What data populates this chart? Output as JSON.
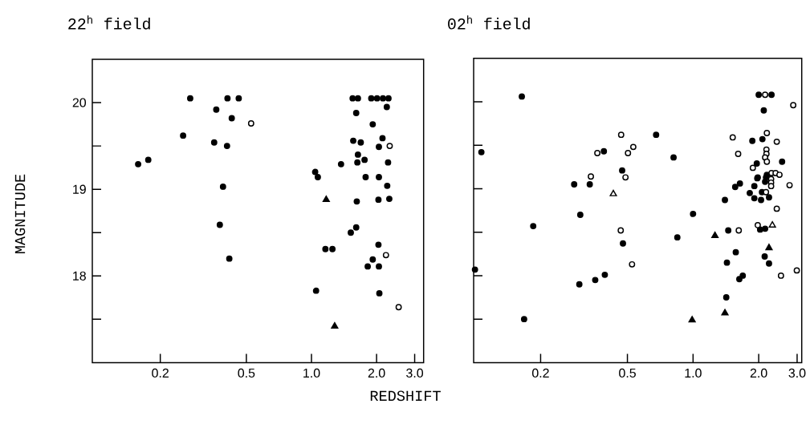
{
  "chart_data": [
    {
      "type": "scatter",
      "title": "22$^{h}$ field",
      "xlabel": "REDSHIFT",
      "ylabel": "MAGNITUDE",
      "log": "x",
      "xlim": [
        0.097,
        3.3
      ],
      "ylim": [
        17,
        20.5
      ],
      "xticks": [
        {
          "value": 0.2,
          "label": "0.2"
        },
        {
          "value": 0.5,
          "label": "0.5"
        },
        {
          "value": 1.0,
          "label": "1.0"
        },
        {
          "value": 2.0,
          "label": "2.0"
        },
        {
          "value": 3.0,
          "label": "3.0"
        }
      ],
      "yticks": [
        {
          "value": 17.5,
          "label": null
        },
        18,
        {
          "value": 18.5,
          "label": null
        },
        19,
        {
          "value": 19.5,
          "label": null
        },
        20
      ],
      "series": [
        {
          "color": "#000000",
          "marker": "circle",
          "x": [
            0.275,
            0.409,
            0.461,
            0.363,
            0.428,
            0.255,
            0.355,
            0.407,
            0.158,
            0.176,
            0.39,
            0.377,
            0.417,
            1.55,
            1.64,
            1.89,
            2.01,
            2.14,
            2.27,
            2.23,
            1.61,
            1.92,
            2.13,
            1.56,
            1.69,
            2.05,
            1.64,
            1.76,
            1.63,
            2.26,
            1.37,
            1.04,
            1.07,
            1.78,
            2.05,
            2.24,
            1.62,
            2.04,
            2.29,
            1.61,
            1.52,
            1.16,
            1.25,
            2.04,
            1.92,
            1.82,
            2.05,
            1.05,
            2.06
          ],
          "values": [
            20.05,
            20.05,
            20.05,
            19.92,
            19.82,
            19.62,
            19.54,
            19.5,
            19.29,
            19.34,
            19.03,
            18.59,
            18.2,
            20.05,
            20.05,
            20.05,
            20.05,
            20.05,
            20.05,
            19.95,
            19.88,
            19.75,
            19.59,
            19.56,
            19.54,
            19.49,
            19.4,
            19.34,
            19.31,
            19.31,
            19.29,
            19.2,
            19.14,
            19.14,
            19.14,
            19.04,
            18.86,
            18.88,
            18.89,
            18.56,
            18.5,
            18.31,
            18.31,
            18.36,
            18.19,
            18.11,
            18.11,
            17.83,
            17.8
          ]
        },
        {
          "color": "#ffffff",
          "marker": "circle",
          "x": [
            0.526,
            2.3,
            2.21,
            2.53
          ],
          "values": [
            19.76,
            19.5,
            18.24,
            17.64
          ]
        },
        {
          "color": "#000000",
          "marker": "triangle",
          "x": [
            1.17,
            1.28
          ],
          "values": [
            18.88,
            17.42
          ]
        }
      ]
    },
    {
      "type": "scatter",
      "title": "02$^{h}$ field",
      "log": "x",
      "tick_labels": "x",
      "xlim": [
        0.0986,
        3.15
      ],
      "ylim": [
        17,
        20.5
      ],
      "xticks": [
        {
          "value": 0.2,
          "label": "0.2"
        },
        {
          "value": 0.5,
          "label": "0.5"
        },
        {
          "value": 1.0,
          "label": "1.0"
        },
        {
          "value": 2.0,
          "label": "2.0"
        },
        {
          "value": 3.0,
          "label": "3.0"
        }
      ],
      "yticks": [
        {
          "value": 17.5,
          "label": null
        },
        18,
        {
          "value": 18.5,
          "label": null
        },
        19,
        {
          "value": 19.5,
          "label": null
        },
        20
      ],
      "series": [
        {
          "color": "#000000",
          "marker": "circle",
          "x": [
            0.164,
            0.107,
            0.1,
            0.168,
            0.185,
            0.285,
            0.304,
            0.301,
            0.356,
            0.394,
            0.336,
            0.39,
            0.473,
            0.477,
            0.677,
            0.814,
            1.0,
            0.847,
            1.42,
            1.4,
            1.45,
            1.43,
            1.57,
            1.63,
            1.69,
            1.56,
            1.64,
            1.87,
            2.08,
            2.11,
            2.0,
            2.29,
            2.56,
            1.96,
            1.98,
            2.18,
            2.16,
            2.14,
            1.97,
            1.91,
            1.82,
            2.07,
            1.91,
            2.05,
            2.23,
            2.03,
            2.14,
            2.13,
            2.23
          ],
          "values": [
            20.06,
            19.42,
            18.07,
            17.5,
            18.57,
            19.05,
            18.7,
            17.9,
            17.95,
            18.01,
            19.05,
            19.43,
            19.21,
            18.37,
            19.62,
            19.36,
            18.71,
            18.44,
            17.75,
            18.87,
            18.52,
            18.15,
            18.27,
            17.96,
            18.0,
            19.02,
            19.06,
            19.55,
            19.57,
            19.9,
            20.08,
            20.08,
            19.31,
            19.29,
            19.13,
            19.16,
            19.13,
            19.08,
            19.12,
            19.03,
            18.95,
            18.96,
            18.89,
            18.87,
            18.9,
            18.53,
            18.54,
            18.22,
            18.14
          ]
        },
        {
          "color": "#ffffff",
          "marker": "circle",
          "x": [
            0.34,
            0.364,
            0.468,
            0.49,
            0.503,
            0.532,
            0.466,
            0.525,
            1.62,
            1.52,
            1.61,
            2.18,
            2.88,
            2.14,
            2.42,
            2.17,
            2.17,
            2.14,
            2.18,
            1.88,
            2.29,
            2.39,
            2.49,
            2.28,
            2.28,
            2.28,
            2.77,
            2.16,
            2.42,
            1.98,
            2.53,
            2.99
          ],
          "values": [
            19.14,
            19.41,
            19.62,
            19.13,
            19.41,
            19.48,
            18.52,
            18.13,
            18.52,
            19.59,
            19.4,
            19.64,
            19.96,
            20.08,
            19.54,
            19.45,
            19.4,
            19.36,
            19.31,
            19.24,
            19.18,
            19.18,
            19.16,
            19.11,
            19.07,
            19.03,
            19.04,
            18.96,
            18.77,
            18.58,
            18.0,
            18.06
          ]
        },
        {
          "color": "#000000",
          "marker": "triangle",
          "x": [
            1.26,
            0.99,
            1.4,
            2.23
          ],
          "values": [
            18.46,
            17.49,
            17.57,
            18.32
          ]
        },
        {
          "color": "#ffffff",
          "marker": "triangle",
          "x": [
            0.431,
            2.31
          ],
          "values": [
            18.94,
            18.58
          ]
        }
      ]
    }
  ]
}
